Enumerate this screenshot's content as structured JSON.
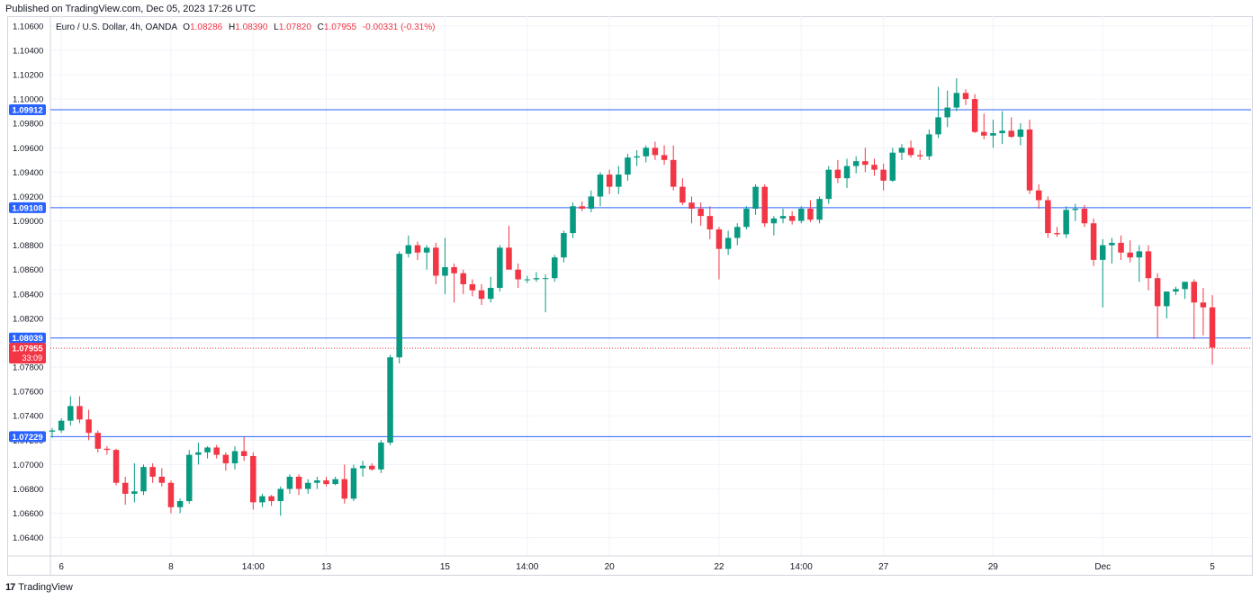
{
  "header": {
    "published": "Published on TradingView.com, Dec 05, 2023 17:26 UTC"
  },
  "legend": {
    "symbol": "Euro / U.S. Dollar, 4h, OANDA",
    "open_label": "O",
    "open": "1.08286",
    "high_label": "H",
    "high": "1.08390",
    "low_label": "L",
    "low": "1.07820",
    "close_label": "C",
    "close": "1.07955",
    "change": "-0.00331 (-0.31%)"
  },
  "footer": {
    "brand": "TradingView",
    "logo_glyph": "17"
  },
  "colors": {
    "up": "#089981",
    "down": "#f23645",
    "level": "#2962ff",
    "grid": "#f0f3fa"
  },
  "chart_data": {
    "type": "candlestick",
    "title": "Euro / U.S. Dollar, 4h, OANDA",
    "xlabel": "",
    "ylabel": "",
    "ylim": [
      1.0625,
      1.1068
    ],
    "grid": true,
    "y_ticks": [
      "1.10600",
      "1.10400",
      "1.10200",
      "1.10000",
      "1.09800",
      "1.09600",
      "1.09400",
      "1.09200",
      "1.09000",
      "1.08800",
      "1.08600",
      "1.08400",
      "1.08200",
      "1.08000",
      "1.07800",
      "1.07600",
      "1.07400",
      "1.07200",
      "1.07000",
      "1.06800",
      "1.06600",
      "1.06400"
    ],
    "x_ticks": [
      {
        "label": "6",
        "bar": 1
      },
      {
        "label": "8",
        "bar": 13
      },
      {
        "label": "14:00",
        "bar": 22
      },
      {
        "label": "13",
        "bar": 30
      },
      {
        "label": "15",
        "bar": 43
      },
      {
        "label": "14:00",
        "bar": 52
      },
      {
        "label": "20",
        "bar": 61
      },
      {
        "label": "22",
        "bar": 73
      },
      {
        "label": "14:00",
        "bar": 82
      },
      {
        "label": "27",
        "bar": 91
      },
      {
        "label": "29",
        "bar": 103
      },
      {
        "label": "Dec",
        "bar": 115
      },
      {
        "label": "5",
        "bar": 127
      }
    ],
    "levels": [
      {
        "label": "1.09912",
        "value": 1.09912
      },
      {
        "label": "1.09108",
        "value": 1.09108
      },
      {
        "label": "1.08039",
        "value": 1.08039
      },
      {
        "label": "1.07229",
        "value": 1.07229
      }
    ],
    "last_price": {
      "label": "1.07955",
      "countdown": "33:09",
      "value": 1.07955
    },
    "candles": [
      [
        1.0727,
        1.073,
        1.0722,
        1.0728
      ],
      [
        1.0728,
        1.0738,
        1.0726,
        1.0736
      ],
      [
        1.0736,
        1.0756,
        1.0732,
        1.0748
      ],
      [
        1.0748,
        1.0756,
        1.0734,
        1.0737
      ],
      [
        1.0737,
        1.0745,
        1.072,
        1.0726
      ],
      [
        1.0726,
        1.0728,
        1.071,
        1.0713
      ],
      [
        1.0713,
        1.0715,
        1.0708,
        1.0712
      ],
      [
        1.0712,
        1.0713,
        1.0683,
        1.0685
      ],
      [
        1.0685,
        1.069,
        1.0667,
        1.0676
      ],
      [
        1.0676,
        1.0701,
        1.0669,
        1.0678
      ],
      [
        1.0678,
        1.07,
        1.0675,
        1.0698
      ],
      [
        1.0698,
        1.0701,
        1.0685,
        1.069
      ],
      [
        1.069,
        1.0697,
        1.0682,
        1.0685
      ],
      [
        1.0685,
        1.0687,
        1.066,
        1.0665
      ],
      [
        1.0665,
        1.0672,
        1.066,
        1.067
      ],
      [
        1.067,
        1.0712,
        1.0668,
        1.0708
      ],
      [
        1.0708,
        1.0718,
        1.07,
        1.071
      ],
      [
        1.071,
        1.0715,
        1.0705,
        1.0714
      ],
      [
        1.0714,
        1.0716,
        1.0705,
        1.0708
      ],
      [
        1.0708,
        1.071,
        1.0695,
        1.0701
      ],
      [
        1.0701,
        1.0715,
        1.0696,
        1.0711
      ],
      [
        1.0711,
        1.0723,
        1.0703,
        1.0707
      ],
      [
        1.0707,
        1.071,
        1.0663,
        1.0669
      ],
      [
        1.0669,
        1.0676,
        1.0665,
        1.0674
      ],
      [
        1.0674,
        1.0675,
        1.0666,
        1.067
      ],
      [
        1.067,
        1.0682,
        1.0658,
        1.068
      ],
      [
        1.068,
        1.0692,
        1.0676,
        1.069
      ],
      [
        1.069,
        1.0692,
        1.0675,
        1.068
      ],
      [
        1.068,
        1.0688,
        1.0676,
        1.0685
      ],
      [
        1.0685,
        1.069,
        1.068,
        1.0687
      ],
      [
        1.0687,
        1.069,
        1.0682,
        1.0684
      ],
      [
        1.0684,
        1.069,
        1.0683,
        1.0688
      ],
      [
        1.0688,
        1.07,
        1.0668,
        1.0672
      ],
      [
        1.0672,
        1.07,
        1.067,
        1.0697
      ],
      [
        1.0697,
        1.0703,
        1.069,
        1.0699
      ],
      [
        1.0699,
        1.0701,
        1.0695,
        1.0696
      ],
      [
        1.0696,
        1.072,
        1.0693,
        1.0718
      ],
      [
        1.0718,
        1.079,
        1.0716,
        1.0788
      ],
      [
        1.0788,
        1.0875,
        1.0783,
        1.0873
      ],
      [
        1.0873,
        1.0888,
        1.087,
        1.088
      ],
      [
        1.088,
        1.0883,
        1.0868,
        1.0874
      ],
      [
        1.0874,
        1.088,
        1.086,
        1.0878
      ],
      [
        1.0878,
        1.0882,
        1.0848,
        1.0855
      ],
      [
        1.0855,
        1.0886,
        1.084,
        1.0862
      ],
      [
        1.0862,
        1.0865,
        1.0833,
        1.0857
      ],
      [
        1.0857,
        1.086,
        1.084,
        1.0848
      ],
      [
        1.0848,
        1.0852,
        1.0838,
        1.0843
      ],
      [
        1.0843,
        1.0848,
        1.0831,
        1.0836
      ],
      [
        1.0836,
        1.0854,
        1.0833,
        1.0845
      ],
      [
        1.0845,
        1.088,
        1.0842,
        1.0878
      ],
      [
        1.0878,
        1.0896,
        1.086,
        1.086
      ],
      [
        1.086,
        1.0865,
        1.0845,
        1.0852
      ],
      [
        1.0852,
        1.0855,
        1.0849,
        1.0852
      ],
      [
        1.0852,
        1.0858,
        1.085,
        1.0853
      ],
      [
        1.0853,
        1.0856,
        1.0825,
        1.0853
      ],
      [
        1.0853,
        1.0872,
        1.085,
        1.087
      ],
      [
        1.087,
        1.0892,
        1.0866,
        1.089
      ],
      [
        1.089,
        1.0915,
        1.0886,
        1.0912
      ],
      [
        1.0912,
        1.0916,
        1.0908,
        1.091
      ],
      [
        1.091,
        1.0925,
        1.0907,
        1.092
      ],
      [
        1.092,
        1.094,
        1.0912,
        1.0938
      ],
      [
        1.0938,
        1.0942,
        1.0922,
        1.0928
      ],
      [
        1.0928,
        1.0945,
        1.0922,
        1.0938
      ],
      [
        1.0938,
        1.0955,
        1.0933,
        1.0952
      ],
      [
        1.0952,
        1.0958,
        1.0945,
        1.0953
      ],
      [
        1.0953,
        1.0962,
        1.0948,
        1.096
      ],
      [
        1.096,
        1.0965,
        1.095,
        1.0954
      ],
      [
        1.0954,
        1.0962,
        1.0946,
        1.095
      ],
      [
        1.095,
        1.0962,
        1.0925,
        1.0928
      ],
      [
        1.0928,
        1.0935,
        1.0913,
        1.0915
      ],
      [
        1.0915,
        1.092,
        1.0898,
        1.091
      ],
      [
        1.091,
        1.0915,
        1.0896,
        1.0904
      ],
      [
        1.0904,
        1.0912,
        1.0885,
        1.0893
      ],
      [
        1.0893,
        1.0895,
        1.0852,
        1.0877
      ],
      [
        1.0877,
        1.0892,
        1.0872,
        1.0886
      ],
      [
        1.0886,
        1.0898,
        1.088,
        1.0895
      ],
      [
        1.0895,
        1.0912,
        1.0893,
        1.091
      ],
      [
        1.091,
        1.093,
        1.0905,
        1.0928
      ],
      [
        1.0928,
        1.093,
        1.0895,
        1.0898
      ],
      [
        1.0898,
        1.0904,
        1.0888,
        1.0902
      ],
      [
        1.0902,
        1.091,
        1.0898,
        1.0904
      ],
      [
        1.0904,
        1.0908,
        1.0897,
        1.09
      ],
      [
        1.09,
        1.0912,
        1.0898,
        1.091
      ],
      [
        1.091,
        1.0917,
        1.0899,
        1.0901
      ],
      [
        1.0901,
        1.092,
        1.0898,
        1.0918
      ],
      [
        1.0918,
        1.0945,
        1.0914,
        1.0942
      ],
      [
        1.0942,
        1.095,
        1.0931,
        1.0935
      ],
      [
        1.0935,
        1.0951,
        1.0927,
        1.0945
      ],
      [
        1.0945,
        1.0953,
        1.0939,
        1.0949
      ],
      [
        1.0949,
        1.096,
        1.094,
        1.0946
      ],
      [
        1.0946,
        1.0951,
        1.0937,
        1.0942
      ],
      [
        1.0942,
        1.0947,
        1.0925,
        1.0933
      ],
      [
        1.0933,
        1.096,
        1.0932,
        1.0956
      ],
      [
        1.0956,
        1.0963,
        1.095,
        1.096
      ],
      [
        1.096,
        1.0966,
        1.0952,
        1.0954
      ],
      [
        1.0954,
        1.0958,
        1.095,
        1.0953
      ],
      [
        1.0953,
        1.0975,
        1.095,
        1.0971
      ],
      [
        1.0971,
        1.101,
        1.0968,
        1.0985
      ],
      [
        1.0985,
        1.1007,
        1.0977,
        1.0993
      ],
      [
        1.0993,
        1.1017,
        1.099,
        1.1005
      ],
      [
        1.1005,
        1.1008,
        1.0995,
        1.1
      ],
      [
        1.1,
        1.1004,
        1.0972,
        1.0973
      ],
      [
        1.0973,
        1.0988,
        1.0967,
        1.097
      ],
      [
        1.097,
        1.0983,
        1.096,
        1.0972
      ],
      [
        1.0972,
        1.099,
        1.0963,
        1.0974
      ],
      [
        1.0974,
        1.0985,
        1.0968,
        1.0969
      ],
      [
        1.0969,
        1.098,
        1.0962,
        1.0975
      ],
      [
        1.0975,
        1.0983,
        1.0922,
        1.0925
      ],
      [
        1.0925,
        1.093,
        1.091,
        1.0917
      ],
      [
        1.0917,
        1.092,
        1.0886,
        1.089
      ],
      [
        1.089,
        1.0895,
        1.0887,
        1.0889
      ],
      [
        1.0889,
        1.0912,
        1.0886,
        1.0909
      ],
      [
        1.0909,
        1.0914,
        1.09,
        1.091
      ],
      [
        1.091,
        1.0913,
        1.0895,
        1.0898
      ],
      [
        1.0898,
        1.0902,
        1.0863,
        1.0868
      ],
      [
        1.0868,
        1.0885,
        1.0829,
        1.088
      ],
      [
        1.088,
        1.0886,
        1.0865,
        1.0882
      ],
      [
        1.0882,
        1.0888,
        1.0868,
        1.0874
      ],
      [
        1.0874,
        1.0884,
        1.0866,
        1.087
      ],
      [
        1.087,
        1.088,
        1.085,
        1.0875
      ],
      [
        1.0875,
        1.088,
        1.0843,
        1.0853
      ],
      [
        1.0853,
        1.0857,
        1.0804,
        1.083
      ],
      [
        1.083,
        1.0842,
        1.082,
        1.0842
      ],
      [
        1.0842,
        1.0846,
        1.0839,
        1.0844
      ],
      [
        1.0844,
        1.085,
        1.0836,
        1.085
      ],
      [
        1.085,
        1.0852,
        1.0803,
        1.0833
      ],
      [
        1.0833,
        1.0845,
        1.0806,
        1.0829
      ],
      [
        1.0829,
        1.0839,
        1.0782,
        1.0796
      ]
    ]
  }
}
